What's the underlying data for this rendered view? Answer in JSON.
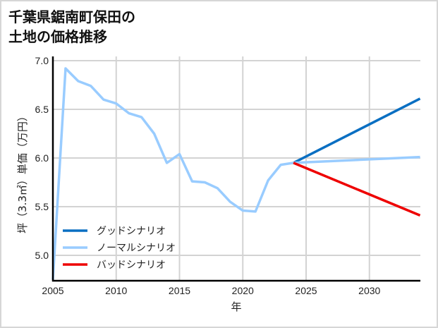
{
  "title_line1": "千葉県鋸南町保田の",
  "title_line2": "土地の価格推移",
  "chart_data": {
    "type": "line",
    "title": "千葉県鋸南町保田の土地の価格推移",
    "xlabel": "年",
    "ylabel": "坪（3.3㎡）単価（万円）",
    "xlim": [
      2005,
      2034
    ],
    "ylim": [
      4.75,
      7.05
    ],
    "xticks": [
      2005,
      2010,
      2015,
      2020,
      2025,
      2030
    ],
    "yticks": [
      5.0,
      5.5,
      6.0,
      6.5,
      7.0
    ],
    "xtick_labels": [
      "2005",
      "2010",
      "2015",
      "2020",
      "2025",
      "2030"
    ],
    "ytick_labels": [
      "5.0",
      "5.5",
      "6.0",
      "6.5",
      "7.0"
    ],
    "grid": true,
    "legend_position": "lower left",
    "series": [
      {
        "name": "グッドシナリオ",
        "color": "#0a6fc2",
        "x": [
          2024,
          2034
        ],
        "values": [
          5.95,
          6.61
        ]
      },
      {
        "name": "ノーマルシナリオ",
        "color": "#99ccff",
        "x": [
          2005,
          2006,
          2007,
          2008,
          2009,
          2010,
          2011,
          2012,
          2013,
          2014,
          2015,
          2016,
          2017,
          2018,
          2019,
          2020,
          2021,
          2022,
          2023,
          2024,
          2034
        ],
        "values": [
          4.75,
          6.92,
          6.79,
          6.74,
          6.6,
          6.56,
          6.46,
          6.42,
          6.25,
          5.95,
          6.04,
          5.76,
          5.75,
          5.69,
          5.55,
          5.46,
          5.45,
          5.77,
          5.93,
          5.95,
          6.01
        ]
      },
      {
        "name": "バッドシナリオ",
        "color": "#ee0000",
        "x": [
          2024,
          2034
        ],
        "values": [
          5.95,
          5.41
        ]
      }
    ]
  }
}
